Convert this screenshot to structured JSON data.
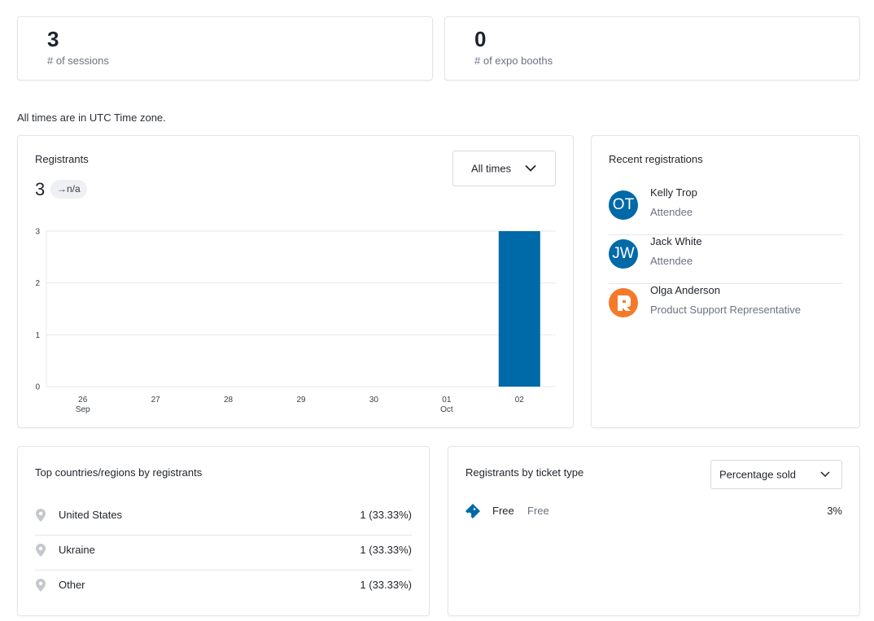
{
  "stats": {
    "sessions": {
      "value": "3",
      "label": "# of sessions"
    },
    "expo_booths": {
      "value": "0",
      "label": "# of expo booths"
    }
  },
  "timezone_note": "All times are in UTC Time zone.",
  "registrants": {
    "title": "Registrants",
    "total": "3",
    "trend": "→n/a",
    "time_filter": "All times"
  },
  "recent": {
    "title": "Recent registrations",
    "items": [
      {
        "initials": "OT",
        "name": "Kelly Trop",
        "role": "Attendee",
        "color": "#0069a8"
      },
      {
        "initials": "JW",
        "name": "Jack White",
        "role": "Attendee",
        "color": "#0069a8"
      },
      {
        "initials": "",
        "name": "Olga Anderson",
        "role": "Product Support Representative",
        "color": "#f47a2a"
      }
    ]
  },
  "countries": {
    "title": "Top countries/regions by registrants",
    "items": [
      {
        "name": "United States",
        "value": "1 (33.33%)"
      },
      {
        "name": "Ukraine",
        "value": "1 (33.33%)"
      },
      {
        "name": "Other",
        "value": "1 (33.33%)"
      }
    ]
  },
  "tickets": {
    "title": "Registrants by ticket type",
    "filter": "Percentage sold",
    "items": [
      {
        "name": "Free",
        "kind": "Free",
        "percent": "3%"
      }
    ]
  },
  "chart_data": {
    "type": "bar",
    "categories": [
      "26",
      "27",
      "28",
      "29",
      "30",
      "01",
      "02"
    ],
    "category_sublabels": [
      "Sep",
      "",
      "",
      "",
      "",
      "Oct",
      ""
    ],
    "values": [
      0,
      0,
      0,
      0,
      0,
      0,
      3
    ],
    "yticks": [
      0,
      1,
      2,
      3
    ],
    "ylim": [
      0,
      3
    ],
    "grid": true,
    "bar_color": "#0069a8"
  }
}
